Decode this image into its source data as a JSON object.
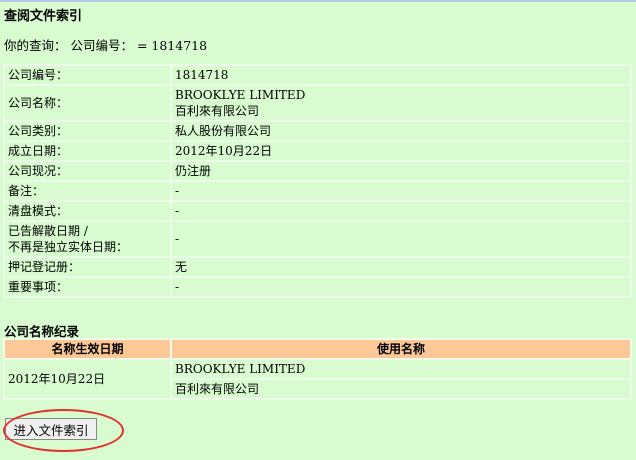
{
  "title": "查阅文件索引",
  "query": "你的查询： 公司编号： = 1814718",
  "info": [
    {
      "label": "公司编号：",
      "value": [
        "1814718"
      ]
    },
    {
      "label": "公司名称：",
      "value": [
        "BROOKLYE LIMITED",
        "百利來有限公司"
      ]
    },
    {
      "label": "公司类别：",
      "value": [
        "私人股份有限公司"
      ]
    },
    {
      "label": "成立日期：",
      "value": [
        "2012年10月22日"
      ]
    },
    {
      "label": "公司现况：",
      "value": [
        "仍注册"
      ]
    },
    {
      "label": "备注：",
      "value": [
        "-"
      ]
    },
    {
      "label": "清盘模式：",
      "value": [
        "-"
      ]
    },
    {
      "label": "已告解散日期 /\n不再是独立实体日期：",
      "value": [
        "-"
      ]
    },
    {
      "label": "押记登记册：",
      "value": [
        "无"
      ]
    },
    {
      "label": "重要事项：",
      "value": [
        "-"
      ]
    }
  ],
  "history": {
    "heading": "公司名称纪录",
    "columns": [
      "名称生效日期",
      "使用名称"
    ],
    "rows": [
      {
        "date": "2012年10月22日",
        "names": [
          "BROOKLYE LIMITED",
          "百利來有限公司"
        ]
      }
    ]
  },
  "button_label": "进入文件索引",
  "colors": {
    "background": "#d8fcd0",
    "header": "#fdc898",
    "highlight_ring": "#e03030"
  }
}
